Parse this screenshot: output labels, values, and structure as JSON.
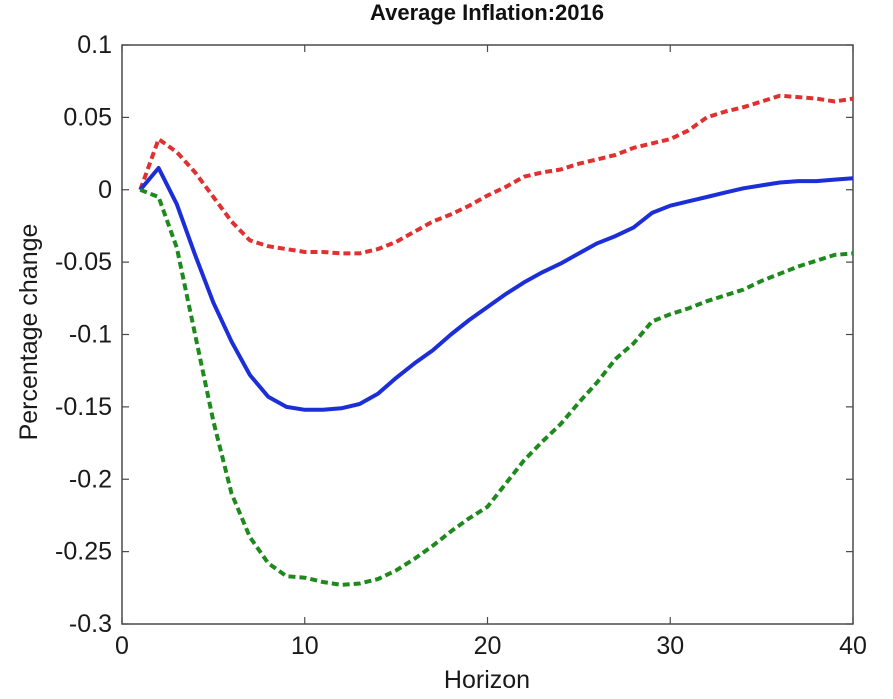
{
  "chart_data": {
    "type": "line",
    "title": "Average Inflation:2016",
    "xlabel": "Horizon",
    "ylabel": "Percentage change",
    "xlim": [
      0,
      40
    ],
    "ylim": [
      -0.3,
      0.1
    ],
    "xticks": [
      0,
      10,
      20,
      30,
      40
    ],
    "xtick_labels": [
      "0",
      "10",
      "20",
      "30",
      "40"
    ],
    "yticks": [
      0.1,
      0.05,
      0,
      -0.05,
      -0.1,
      -0.15,
      -0.2,
      -0.25,
      -0.3
    ],
    "ytick_labels": [
      "0.1",
      "0.05",
      "0",
      "-0.05",
      "-0.1",
      "-0.15",
      "-0.2",
      "-0.25",
      "-0.3"
    ],
    "grid": false,
    "legend": "none",
    "x": [
      1,
      2,
      3,
      4,
      5,
      6,
      7,
      8,
      9,
      10,
      11,
      12,
      13,
      14,
      15,
      16,
      17,
      18,
      19,
      20,
      21,
      22,
      23,
      24,
      25,
      26,
      27,
      28,
      29,
      30,
      31,
      32,
      33,
      34,
      35,
      36,
      37,
      38,
      39,
      40
    ],
    "series": [
      {
        "color": "#e03030",
        "style": "dashed",
        "values": [
          0,
          0.035,
          0.026,
          0.012,
          -0.005,
          -0.022,
          -0.035,
          -0.039,
          -0.041,
          -0.043,
          -0.043,
          -0.044,
          -0.044,
          -0.041,
          -0.036,
          -0.029,
          -0.022,
          -0.017,
          -0.011,
          -0.004,
          0.002,
          0.009,
          0.012,
          0.014,
          0.018,
          0.021,
          0.024,
          0.029,
          0.032,
          0.035,
          0.041,
          0.05,
          0.054,
          0.057,
          0.061,
          0.065,
          0.064,
          0.063,
          0.061,
          0.063
        ]
      },
      {
        "color": "#1c2ed8",
        "style": "solid",
        "values": [
          0,
          0.015,
          -0.01,
          -0.045,
          -0.078,
          -0.105,
          -0.128,
          -0.143,
          -0.15,
          -0.152,
          -0.152,
          -0.151,
          -0.148,
          -0.141,
          -0.13,
          -0.12,
          -0.111,
          -0.1,
          -0.09,
          -0.081,
          -0.072,
          -0.064,
          -0.057,
          -0.051,
          -0.044,
          -0.037,
          -0.032,
          -0.026,
          -0.016,
          -0.011,
          -0.008,
          -0.005,
          -0.002,
          0.001,
          0.003,
          0.005,
          0.006,
          0.006,
          0.007,
          0.008
        ]
      },
      {
        "color": "#1e8a1e",
        "style": "dashed",
        "values": [
          0,
          -0.005,
          -0.04,
          -0.1,
          -0.16,
          -0.21,
          -0.24,
          -0.258,
          -0.267,
          -0.268,
          -0.271,
          -0.273,
          -0.272,
          -0.269,
          -0.263,
          -0.255,
          -0.246,
          -0.236,
          -0.227,
          -0.219,
          -0.203,
          -0.187,
          -0.174,
          -0.162,
          -0.147,
          -0.133,
          -0.117,
          -0.106,
          -0.091,
          -0.086,
          -0.082,
          -0.077,
          -0.073,
          -0.069,
          -0.063,
          -0.058,
          -0.053,
          -0.049,
          -0.045,
          -0.044
        ]
      }
    ]
  }
}
